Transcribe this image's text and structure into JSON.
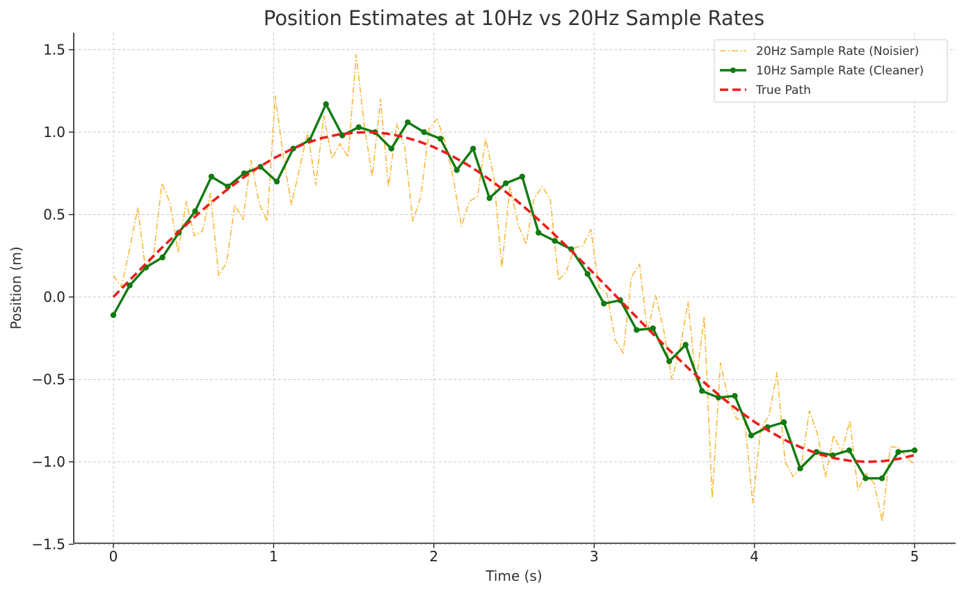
{
  "chart_data": {
    "type": "line",
    "title": "Position Estimates at 10Hz vs 20Hz Sample Rates",
    "xlabel": "Time (s)",
    "ylabel": "Position (m)",
    "xlim": [
      -0.25,
      5.25
    ],
    "ylim": [
      -1.5,
      1.6
    ],
    "xticks": [
      0,
      1,
      2,
      3,
      4,
      5
    ],
    "xtick_labels": [
      "0",
      "1",
      "2",
      "3",
      "4",
      "5"
    ],
    "yticks": [
      -1.5,
      -1.0,
      -0.5,
      0.0,
      0.5,
      1.0,
      1.5
    ],
    "ytick_labels": [
      "−1.5",
      "−1.0",
      "−0.5",
      "0.0",
      "0.5",
      "1.0",
      "1.5"
    ],
    "grid": true,
    "legend_position": "top-right",
    "colors": {
      "noisy": "#f7b733",
      "clean": "#117a11",
      "true": "#ee1c1c",
      "grid": "#c8c8c8",
      "axis": "#222222"
    },
    "series": [
      {
        "name": "20Hz Sample Rate (Noisier)",
        "style": "dashdot",
        "x": [
          0.0,
          0.05,
          0.101,
          0.152,
          0.202,
          0.253,
          0.303,
          0.354,
          0.404,
          0.455,
          0.505,
          0.556,
          0.606,
          0.657,
          0.707,
          0.758,
          0.808,
          0.859,
          0.909,
          0.96,
          1.01,
          1.061,
          1.111,
          1.162,
          1.212,
          1.263,
          1.313,
          1.364,
          1.414,
          1.465,
          1.515,
          1.566,
          1.616,
          1.667,
          1.717,
          1.768,
          1.818,
          1.869,
          1.919,
          1.97,
          2.02,
          2.071,
          2.121,
          2.172,
          2.222,
          2.273,
          2.323,
          2.374,
          2.424,
          2.475,
          2.525,
          2.576,
          2.626,
          2.677,
          2.727,
          2.778,
          2.828,
          2.879,
          2.929,
          2.98,
          3.03,
          3.081,
          3.131,
          3.182,
          3.232,
          3.283,
          3.333,
          3.384,
          3.434,
          3.485,
          3.535,
          3.586,
          3.636,
          3.687,
          3.737,
          3.788,
          3.838,
          3.889,
          3.939,
          3.99,
          4.04,
          4.091,
          4.141,
          4.192,
          4.242,
          4.293,
          4.343,
          4.394,
          4.444,
          4.495,
          4.545,
          4.596,
          4.646,
          4.697,
          4.747,
          4.798,
          4.848,
          4.899,
          4.949,
          5.0
        ],
        "y": [
          0.13,
          0.06,
          0.29,
          0.54,
          0.16,
          0.27,
          0.69,
          0.57,
          0.27,
          0.58,
          0.37,
          0.4,
          0.63,
          0.13,
          0.21,
          0.56,
          0.47,
          0.83,
          0.57,
          0.46,
          1.22,
          0.85,
          0.56,
          0.78,
          1.0,
          0.68,
          1.1,
          0.84,
          0.93,
          0.85,
          1.47,
          1.04,
          0.73,
          1.2,
          0.67,
          1.05,
          0.91,
          0.46,
          0.61,
          1.02,
          1.08,
          0.94,
          0.72,
          0.43,
          0.58,
          0.61,
          0.96,
          0.73,
          0.18,
          0.67,
          0.44,
          0.32,
          0.6,
          0.67,
          0.59,
          0.1,
          0.16,
          0.3,
          0.31,
          0.41,
          0.06,
          0.02,
          -0.26,
          -0.34,
          0.12,
          0.2,
          -0.21,
          0.01,
          -0.2,
          -0.5,
          -0.32,
          -0.03,
          -0.52,
          -0.12,
          -1.22,
          -0.4,
          -0.62,
          -0.74,
          -0.74,
          -1.25,
          -0.8,
          -0.72,
          -0.46,
          -1.0,
          -1.09,
          -1.03,
          -0.69,
          -0.83,
          -1.09,
          -0.84,
          -0.94,
          -0.75,
          -1.17,
          -1.07,
          -1.13,
          -1.36,
          -0.91,
          -0.91,
          -0.97,
          -1.02
        ]
      },
      {
        "name": "10Hz Sample Rate (Cleaner)",
        "style": "solid-markers",
        "x": [
          0.0,
          0.102,
          0.204,
          0.306,
          0.408,
          0.51,
          0.612,
          0.714,
          0.816,
          0.918,
          1.02,
          1.122,
          1.224,
          1.327,
          1.429,
          1.531,
          1.633,
          1.735,
          1.837,
          1.939,
          2.041,
          2.143,
          2.245,
          2.347,
          2.449,
          2.551,
          2.653,
          2.755,
          2.857,
          2.959,
          3.061,
          3.163,
          3.265,
          3.367,
          3.469,
          3.571,
          3.673,
          3.776,
          3.878,
          3.98,
          4.082,
          4.184,
          4.286,
          4.388,
          4.49,
          4.592,
          4.694,
          4.796,
          4.898,
          5.0
        ],
        "y": [
          -0.11,
          0.07,
          0.18,
          0.24,
          0.39,
          0.52,
          0.73,
          0.67,
          0.75,
          0.79,
          0.7,
          0.9,
          0.95,
          1.17,
          0.98,
          1.03,
          1.0,
          0.9,
          1.06,
          1.0,
          0.96,
          0.77,
          0.9,
          0.6,
          0.69,
          0.73,
          0.39,
          0.34,
          0.29,
          0.14,
          -0.04,
          -0.02,
          -0.2,
          -0.19,
          -0.39,
          -0.29,
          -0.57,
          -0.61,
          -0.6,
          -0.84,
          -0.79,
          -0.76,
          -1.04,
          -0.94,
          -0.96,
          -0.93,
          -1.1,
          -1.1,
          -0.94,
          -0.93
        ]
      },
      {
        "name": "True Path",
        "style": "dashed",
        "function": "sin(t)",
        "x": [
          0.0,
          0.1,
          0.2,
          0.3,
          0.4,
          0.5,
          0.6,
          0.7,
          0.8,
          0.9,
          1.0,
          1.1,
          1.2,
          1.3,
          1.4,
          1.5,
          1.6,
          1.7,
          1.8,
          1.9,
          2.0,
          2.1,
          2.2,
          2.3,
          2.4,
          2.5,
          2.6,
          2.7,
          2.8,
          2.9,
          3.0,
          3.1,
          3.2,
          3.3,
          3.4,
          3.5,
          3.6,
          3.7,
          3.8,
          3.9,
          4.0,
          4.1,
          4.2,
          4.3,
          4.4,
          4.5,
          4.6,
          4.7,
          4.8,
          4.9,
          5.0
        ],
        "y": [
          0.0,
          0.1,
          0.199,
          0.296,
          0.389,
          0.479,
          0.565,
          0.644,
          0.717,
          0.783,
          0.841,
          0.891,
          0.932,
          0.964,
          0.985,
          0.997,
          1.0,
          0.992,
          0.974,
          0.946,
          0.909,
          0.863,
          0.808,
          0.746,
          0.675,
          0.598,
          0.516,
          0.427,
          0.335,
          0.239,
          0.141,
          0.042,
          -0.058,
          -0.158,
          -0.256,
          -0.351,
          -0.443,
          -0.53,
          -0.612,
          -0.688,
          -0.757,
          -0.818,
          -0.872,
          -0.916,
          -0.952,
          -0.978,
          -0.994,
          -1.0,
          -0.996,
          -0.982,
          -0.959
        ]
      }
    ]
  }
}
